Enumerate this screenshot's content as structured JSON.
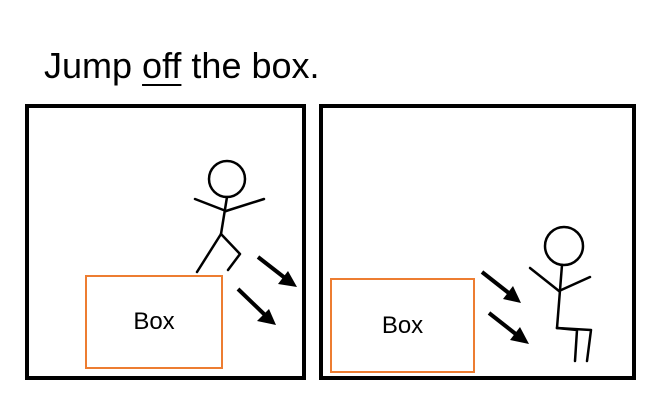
{
  "title": {
    "before": "Jump ",
    "emphasis": "off",
    "after": " the box."
  },
  "panels": {
    "left": {
      "box_label": "Box"
    },
    "right": {
      "box_label": "Box"
    }
  },
  "colors": {
    "box_border": "#ed7d31",
    "ink": "#000000",
    "background": "#ffffff"
  }
}
